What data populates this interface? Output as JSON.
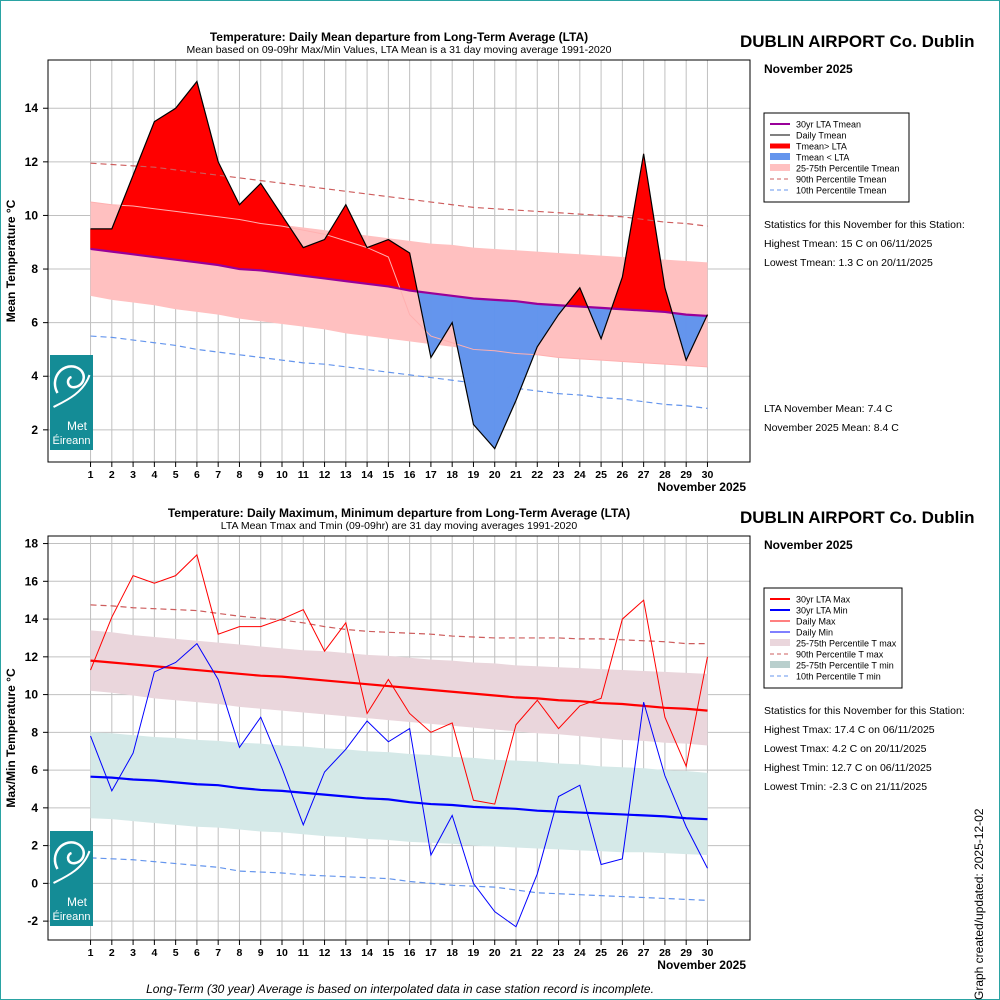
{
  "colors": {
    "tmean_above": "#ff0000",
    "tmean_below": "#6495ed",
    "lta_tmean": "#990099",
    "band_tmean": "#ffc0c0",
    "p90_tmean": "#cd5c5c",
    "p10_tmean": "#6495ed",
    "lta_max": "#ff0000",
    "lta_min": "#0000ff",
    "band_tmax": "#ead6dc",
    "band_tmin": "#d5e9e8",
    "logo": "#148c96"
  },
  "logo": {
    "name": "met-eireann-logo",
    "text_line1": "Met",
    "text_line2": "Éireann"
  },
  "footer": "Long-Term (30 year) Average is based on interpolated data in case station record is incomplete.",
  "created": "Graph created/updated:  2025-12-02",
  "chart_data": [
    {
      "type": "area",
      "title": "Temperature: Daily Mean departure from Long-Term Average (LTA)",
      "subtitle": "Mean based on 09-09hr Max/Min Values, LTA Mean is a 31 day moving average 1991-2020",
      "station": "DUBLIN AIRPORT Co. Dublin",
      "month_label": "November 2025",
      "xlabel": "November 2025",
      "ylabel": "Mean Temperature °C",
      "x": [
        1,
        2,
        3,
        4,
        5,
        6,
        7,
        8,
        9,
        10,
        11,
        12,
        13,
        14,
        15,
        16,
        17,
        18,
        19,
        20,
        21,
        22,
        23,
        24,
        25,
        26,
        27,
        28,
        29,
        30
      ],
      "xlim": [
        -1,
        32
      ],
      "ylim": [
        0.8,
        15.8
      ],
      "yticks": [
        2,
        4,
        6,
        8,
        10,
        12,
        14
      ],
      "grid": true,
      "series": [
        {
          "name": "Daily Tmean",
          "values": [
            9.5,
            9.5,
            11.5,
            13.5,
            14,
            15,
            12,
            10.4,
            11.2,
            10,
            8.8,
            9.1,
            10.4,
            8.8,
            9.1,
            8.6,
            4.7,
            6,
            2.2,
            1.3,
            3.1,
            5.1,
            6.3,
            7.3,
            5.4,
            7.7,
            12.3,
            7.3,
            4.6,
            6.3
          ]
        },
        {
          "name": "30yr LTA Tmean",
          "values": [
            8.75,
            8.65,
            8.55,
            8.45,
            8.35,
            8.25,
            8.15,
            8.0,
            7.95,
            7.85,
            7.75,
            7.65,
            7.55,
            7.45,
            7.35,
            7.2,
            7.1,
            7.0,
            6.9,
            6.85,
            6.8,
            6.7,
            6.65,
            6.6,
            6.55,
            6.5,
            6.45,
            6.4,
            6.3,
            6.25
          ]
        },
        {
          "name": "25th Percentile Tmean",
          "values": [
            7.0,
            6.85,
            6.75,
            6.65,
            6.5,
            6.4,
            6.3,
            6.15,
            6.05,
            5.95,
            5.85,
            5.75,
            5.6,
            5.5,
            5.4,
            5.3,
            5.2,
            5.1,
            5.0,
            4.95,
            4.85,
            4.8,
            4.7,
            4.65,
            4.6,
            4.55,
            4.5,
            4.45,
            4.4,
            4.35
          ]
        },
        {
          "name": "75th Percentile Tmean",
          "values": [
            10.5,
            10.4,
            10.25,
            10.2,
            10.1,
            10.05,
            9.95,
            9.85,
            9.75,
            9.65,
            9.55,
            9.45,
            9.35,
            9.25,
            9.15,
            9.05,
            8.95,
            8.9,
            8.8,
            8.75,
            8.7,
            8.65,
            8.6,
            8.55,
            8.5,
            8.45,
            8.4,
            8.35,
            8.3,
            8.25
          ]
        },
        {
          "name": "90th Percentile Tmean",
          "values": [
            11.95,
            11.9,
            11.85,
            11.8,
            11.7,
            11.6,
            11.5,
            11.4,
            11.3,
            11.2,
            11.1,
            11.0,
            10.9,
            10.8,
            10.7,
            10.6,
            10.5,
            10.4,
            10.3,
            10.25,
            10.2,
            10.15,
            10.1,
            10.05,
            10.0,
            9.95,
            9.85,
            9.75,
            9.7,
            9.6
          ]
        },
        {
          "name": "10th Percentile Tmean",
          "values": [
            5.5,
            5.45,
            5.35,
            5.25,
            5.15,
            5.0,
            4.9,
            4.8,
            4.7,
            4.6,
            4.5,
            4.45,
            4.35,
            4.25,
            4.15,
            4.05,
            3.95,
            3.85,
            3.75,
            3.65,
            3.55,
            3.45,
            3.35,
            3.3,
            3.2,
            3.15,
            3.05,
            2.95,
            2.9,
            2.8
          ]
        },
        {
          "name": "Median Tmean",
          "values": [
            10.5,
            10.4,
            10.35,
            10.25,
            10.15,
            10.05,
            9.95,
            9.85,
            9.7,
            9.6,
            9.45,
            9.3,
            9.05,
            8.8,
            8.45,
            6.3,
            5.5,
            5.25,
            5.0,
            4.95,
            4.85,
            4.8,
            4.7,
            4.65,
            4.6,
            4.55,
            4.5,
            4.45,
            4.4,
            4.35
          ]
        }
      ],
      "legend": {
        "placement": "right",
        "entries": [
          "30yr LTA Tmean",
          "Daily Tmean",
          "Tmean> LTA",
          "Tmean < LTA",
          "25-75th Percentile Tmean",
          "90th Percentile Tmean",
          "10th Percentile Tmean"
        ]
      },
      "stats_header": "Statistics for this November for this Station:",
      "stats": [
        "Highest Tmean: 15 C on 06/11/2025",
        "Lowest Tmean: 1.3 C on 20/11/2025"
      ],
      "means": [
        "LTA November Mean: 7.4 C",
        "November 2025 Mean: 8.4 C"
      ]
    },
    {
      "type": "line",
      "title": "Temperature: Daily Maximum, Minimum departure from Long-Term Average (LTA)",
      "subtitle": "LTA Mean Tmax and Tmin (09-09hr) are 31 day moving averages 1991-2020",
      "station": "DUBLIN AIRPORT Co. Dublin",
      "month_label": "November 2025",
      "xlabel": "November 2025",
      "ylabel": "Max/Min Temperature °C",
      "x": [
        1,
        2,
        3,
        4,
        5,
        6,
        7,
        8,
        9,
        10,
        11,
        12,
        13,
        14,
        15,
        16,
        17,
        18,
        19,
        20,
        21,
        22,
        23,
        24,
        25,
        26,
        27,
        28,
        29,
        30
      ],
      "xlim": [
        -1,
        32
      ],
      "ylim": [
        -3,
        18.4
      ],
      "yticks": [
        -2,
        0,
        2,
        4,
        6,
        8,
        10,
        12,
        14,
        16,
        18
      ],
      "grid": true,
      "series": [
        {
          "name": "Daily Max",
          "values": [
            11.3,
            14.1,
            16.3,
            15.9,
            16.3,
            17.4,
            13.2,
            13.6,
            13.6,
            14.0,
            14.5,
            12.3,
            13.8,
            9.0,
            10.8,
            9.0,
            8.0,
            8.5,
            4.4,
            4.2,
            8.4,
            9.7,
            8.2,
            9.4,
            9.8,
            14.0,
            15.0,
            8.8,
            6.2,
            12.0
          ]
        },
        {
          "name": "Daily Min",
          "values": [
            7.8,
            4.9,
            6.9,
            11.2,
            11.7,
            12.7,
            10.8,
            7.2,
            8.8,
            6.1,
            3.1,
            5.9,
            7.1,
            8.6,
            7.5,
            8.2,
            1.5,
            3.6,
            0.0,
            -1.5,
            -2.3,
            0.5,
            4.6,
            5.2,
            1.0,
            1.3,
            9.6,
            5.7,
            3.0,
            0.8
          ]
        },
        {
          "name": "30yr LTA Max",
          "values": [
            11.8,
            11.7,
            11.6,
            11.5,
            11.4,
            11.3,
            11.2,
            11.1,
            11.0,
            10.95,
            10.85,
            10.75,
            10.65,
            10.55,
            10.45,
            10.35,
            10.25,
            10.15,
            10.05,
            9.95,
            9.85,
            9.8,
            9.7,
            9.65,
            9.55,
            9.5,
            9.4,
            9.3,
            9.25,
            9.15
          ]
        },
        {
          "name": "30yr LTA Min",
          "values": [
            5.65,
            5.6,
            5.5,
            5.45,
            5.35,
            5.25,
            5.2,
            5.05,
            4.95,
            4.9,
            4.8,
            4.7,
            4.6,
            4.5,
            4.45,
            4.3,
            4.2,
            4.15,
            4.05,
            4.0,
            3.95,
            3.85,
            3.8,
            3.75,
            3.7,
            3.65,
            3.6,
            3.55,
            3.45,
            3.4
          ]
        },
        {
          "name": "25th Percentile T max",
          "values": [
            10.2,
            10.1,
            9.95,
            9.8,
            9.7,
            9.6,
            9.5,
            9.35,
            9.25,
            9.15,
            9.05,
            8.95,
            8.85,
            8.75,
            8.65,
            8.55,
            8.45,
            8.35,
            8.25,
            8.15,
            8.05,
            7.95,
            7.9,
            7.8,
            7.7,
            7.6,
            7.55,
            7.45,
            7.4,
            7.3
          ]
        },
        {
          "name": "75th Percentile T max",
          "values": [
            13.4,
            13.3,
            13.15,
            13.05,
            12.95,
            12.85,
            12.75,
            12.65,
            12.55,
            12.45,
            12.35,
            12.3,
            12.2,
            12.1,
            12.05,
            11.95,
            11.85,
            11.8,
            11.7,
            11.65,
            11.55,
            11.5,
            11.45,
            11.4,
            11.35,
            11.3,
            11.25,
            11.2,
            11.15,
            11.1
          ]
        },
        {
          "name": "25th Percentile T min",
          "values": [
            3.45,
            3.4,
            3.3,
            3.2,
            3.1,
            3.0,
            2.95,
            2.85,
            2.75,
            2.7,
            2.6,
            2.5,
            2.45,
            2.35,
            2.3,
            2.2,
            2.15,
            2.1,
            2.0,
            1.95,
            1.9,
            1.85,
            1.8,
            1.75,
            1.7,
            1.65,
            1.65,
            1.6,
            1.55,
            1.5
          ]
        },
        {
          "name": "75th Percentile T min",
          "values": [
            8.0,
            7.95,
            7.85,
            7.75,
            7.7,
            7.6,
            7.55,
            7.45,
            7.4,
            7.3,
            7.25,
            7.15,
            7.1,
            7.0,
            6.95,
            6.85,
            6.8,
            6.7,
            6.65,
            6.55,
            6.5,
            6.45,
            6.35,
            6.3,
            6.2,
            6.15,
            6.1,
            6.0,
            5.95,
            5.85
          ]
        },
        {
          "name": "90th Percentile T max",
          "values": [
            14.75,
            14.7,
            14.6,
            14.55,
            14.5,
            14.45,
            14.3,
            14.15,
            14.05,
            13.95,
            13.8,
            13.6,
            13.45,
            13.35,
            13.3,
            13.25,
            13.2,
            13.1,
            13.05,
            13.0,
            13.0,
            13.0,
            13.0,
            12.95,
            12.95,
            12.9,
            12.85,
            12.8,
            12.7,
            12.7
          ]
        },
        {
          "name": "10th Percentile T min",
          "values": [
            1.35,
            1.3,
            1.25,
            1.15,
            1.05,
            0.95,
            0.85,
            0.65,
            0.6,
            0.55,
            0.45,
            0.4,
            0.35,
            0.3,
            0.25,
            0.1,
            0.0,
            -0.1,
            -0.15,
            -0.2,
            -0.35,
            -0.5,
            -0.55,
            -0.6,
            -0.65,
            -0.7,
            -0.75,
            -0.8,
            -0.85,
            -0.9
          ]
        }
      ],
      "legend": {
        "placement": "right",
        "entries": [
          "30yr LTA Max",
          "30yr LTA Min",
          "Daily Max",
          "Daily Min",
          "25-75th Percentile T max",
          "90th Percentile T max",
          "25-75th Percentile T min",
          "10th Percentile T min"
        ]
      },
      "stats_header": "Statistics for this November for this Station:",
      "stats": [
        "Highest Tmax: 17.4 C on 06/11/2025",
        "Lowest Tmax: 4.2 C on 20/11/2025",
        "Highest Tmin: 12.7 C on 06/11/2025",
        "Lowest Tmin: -2.3 C on 21/11/2025"
      ]
    }
  ]
}
